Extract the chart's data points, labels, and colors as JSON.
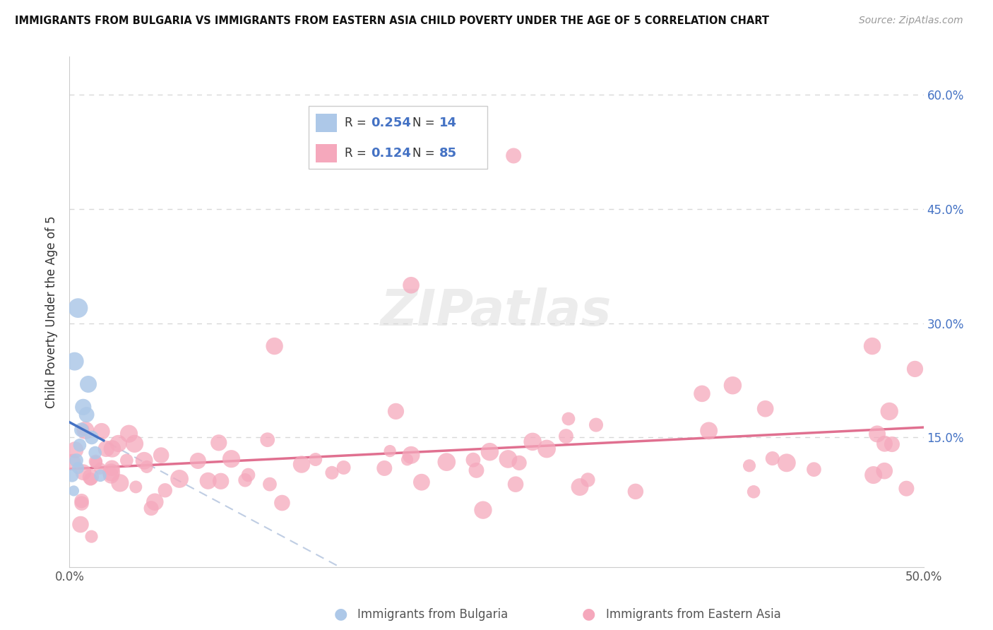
{
  "title": "IMMIGRANTS FROM BULGARIA VS IMMIGRANTS FROM EASTERN ASIA CHILD POVERTY UNDER THE AGE OF 5 CORRELATION CHART",
  "source": "Source: ZipAtlas.com",
  "ylabel": "Child Poverty Under the Age of 5",
  "xlim": [
    0,
    50
  ],
  "ylim": [
    -2,
    65
  ],
  "ytick_labels": [
    "15.0%",
    "30.0%",
    "45.0%",
    "60.0%"
  ],
  "ytick_values": [
    15,
    30,
    45,
    60
  ],
  "legend_R1": "0.254",
  "legend_N1": "14",
  "legend_R2": "0.124",
  "legend_N2": "85",
  "color_bulgaria": "#adc8e8",
  "color_eastern_asia": "#f5a8bc",
  "color_bulgaria_line": "#4472c4",
  "color_bulgaria_dash": "#c0cfe8",
  "color_eastern_asia_line": "#e07090",
  "background_color": "#ffffff",
  "grid_color": "#d8d8d8",
  "watermark_color": "#e8e8e8"
}
